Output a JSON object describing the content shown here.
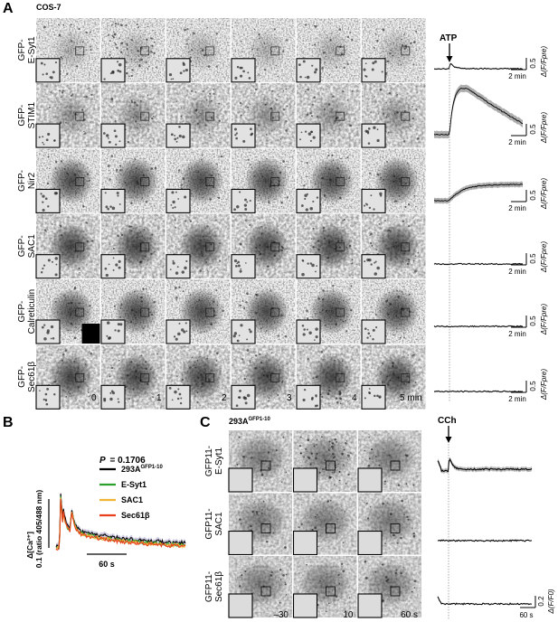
{
  "panelA": {
    "letter": "A",
    "cell_line": "COS-7",
    "rows": [
      {
        "line1": "GFP-",
        "line2": "E-Syt1"
      },
      {
        "line1": "GFP-",
        "line2": "STIM1"
      },
      {
        "line1": "GFP-",
        "line2": "Nir2"
      },
      {
        "line1": "GFP-",
        "line2": "SAC1"
      },
      {
        "line1": "GFP-",
        "line2": "Calreticulin"
      },
      {
        "line1": "GFP-",
        "line2": "Sec61β"
      }
    ],
    "time_labels": [
      "0",
      "1",
      "2",
      "3",
      "4",
      "5 min"
    ],
    "stimulus": "ATP",
    "scale_time": "2 min",
    "scale_value": "0.5",
    "trace_axis_label": "Δ(F/Fpre)",
    "traces": [
      {
        "name": "E-Syt1",
        "shape": "spike"
      },
      {
        "name": "STIM1",
        "shape": "rise"
      },
      {
        "name": "Nir2",
        "shape": "slow"
      },
      {
        "name": "SAC1",
        "shape": "flat"
      },
      {
        "name": "Calreticulin",
        "shape": "flat"
      },
      {
        "name": "Sec61β",
        "shape": "flat"
      }
    ]
  },
  "panelB": {
    "letter": "B",
    "p_value": "P = 0.1706",
    "legend": [
      {
        "label": "293A",
        "sup": "GFP1-10",
        "color": "#000000"
      },
      {
        "label": "E-Syt1",
        "sup": "",
        "color": "#2ca02c"
      },
      {
        "label": "SAC1",
        "sup": "",
        "color": "#f2b233"
      },
      {
        "label": "Sec61β",
        "sup": "",
        "color": "#e8401c"
      }
    ],
    "ylabel_line1": "Δ[Ca²⁺]",
    "ylabel_line2": "0.1 (ratio 405/488 nm)",
    "time_scale": "60 s"
  },
  "panelC": {
    "letter": "C",
    "cell_line": "293A",
    "cell_line_sup": "GFP1-10",
    "rows": [
      {
        "line1": "GFP11-",
        "line2": "E-Syt1"
      },
      {
        "line1": "GFP11-",
        "line2": "SAC1"
      },
      {
        "line1": "GFP11-",
        "line2": "Sec61β"
      }
    ],
    "time_labels": [
      "–30",
      "10",
      "60 s"
    ],
    "stimulus": "CCh",
    "scale_time": "60 s",
    "scale_value": "0.2",
    "trace_axis_label": "Δ(F/F0)"
  }
}
